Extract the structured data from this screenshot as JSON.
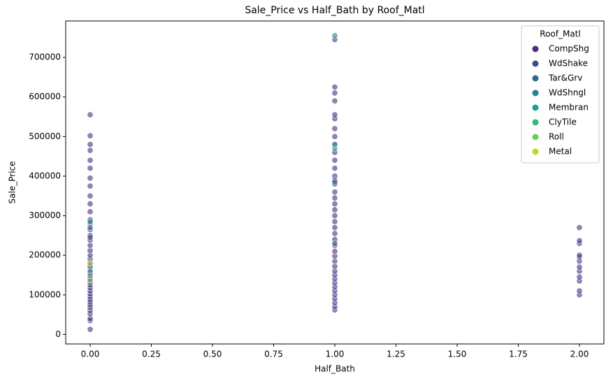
{
  "chart_data": {
    "type": "scatter",
    "title": "Sale_Price vs Half_Bath by Roof_Matl",
    "x_label": "Half_Bath",
    "y_label": "Sale_Price",
    "legend_title": "Roof_Matl",
    "legend_position": "upper right",
    "xlim": [
      -0.1,
      2.1
    ],
    "ylim": [
      -24000,
      792000
    ],
    "xticks": [
      {
        "value": 0,
        "label": "0.00"
      },
      {
        "value": 0.25,
        "label": "0.25"
      },
      {
        "value": 0.5,
        "label": "0.50"
      },
      {
        "value": 0.75,
        "label": "0.75"
      },
      {
        "value": 1,
        "label": "1.00"
      },
      {
        "value": 1.25,
        "label": "1.25"
      },
      {
        "value": 1.5,
        "label": "1.50"
      },
      {
        "value": 1.75,
        "label": "1.75"
      },
      {
        "value": 2,
        "label": "2.00"
      }
    ],
    "yticks": [
      0,
      100000,
      200000,
      300000,
      400000,
      500000,
      600000,
      700000
    ],
    "series": [
      {
        "name": "CompShg",
        "color": "#46307e",
        "x": [
          0,
          0,
          0,
          0,
          0,
          0,
          0,
          0,
          0,
          0,
          0,
          0,
          0,
          0,
          0,
          0,
          0,
          0,
          0,
          0,
          0,
          0,
          0,
          0,
          0,
          0,
          0,
          0,
          0,
          0,
          0,
          0,
          0,
          0,
          0,
          0,
          0,
          0,
          0,
          0,
          1,
          1,
          1,
          1,
          1,
          1,
          1,
          1,
          1,
          1,
          1,
          1,
          1,
          1,
          1,
          1,
          1,
          1,
          1,
          1,
          1,
          1,
          1,
          1,
          1,
          1,
          1,
          1,
          1,
          1,
          1,
          1,
          1,
          1,
          1,
          1,
          1,
          1,
          1,
          2,
          2,
          2,
          2,
          2,
          2,
          2,
          2,
          2,
          2,
          2,
          2
        ],
        "values": [
          12789,
          35000,
          40000,
          52000,
          60000,
          68000,
          75000,
          82000,
          88000,
          95000,
          102000,
          110000,
          118000,
          125000,
          132000,
          140000,
          148000,
          155000,
          163000,
          172000,
          180000,
          190000,
          200000,
          212000,
          225000,
          238000,
          250000,
          265000,
          290000,
          310000,
          330000,
          350000,
          375000,
          395000,
          420000,
          440000,
          465000,
          480000,
          502000,
          555000,
          62000,
          70000,
          80000,
          90000,
          100000,
          110000,
          120000,
          130000,
          140000,
          150000,
          160000,
          172000,
          185000,
          198000,
          210000,
          225000,
          240000,
          255000,
          270000,
          285000,
          300000,
          315000,
          330000,
          345000,
          360000,
          380000,
          400000,
          420000,
          440000,
          460000,
          480000,
          500000,
          520000,
          545000,
          555000,
          590000,
          610000,
          625000,
          745000,
          100000,
          110000,
          135000,
          145000,
          160000,
          170000,
          185000,
          195000,
          200000,
          230000,
          237000,
          270000
        ]
      },
      {
        "name": "WdShake",
        "color": "#3e4a89",
        "x": [
          0,
          0,
          1
        ],
        "values": [
          280000,
          245000,
          390000
        ]
      },
      {
        "name": "Tar&Grv",
        "color": "#31688e",
        "x": [
          0,
          1,
          1
        ],
        "values": [
          270000,
          385000,
          230000
        ]
      },
      {
        "name": "WdShngl",
        "color": "#26828e",
        "x": [
          0,
          1,
          1
        ],
        "values": [
          285000,
          755000,
          470000
        ]
      },
      {
        "name": "Membran",
        "color": "#1f9e89",
        "x": [
          1
        ],
        "values": [
          480000
        ]
      },
      {
        "name": "ClyTile",
        "color": "#35b779",
        "x": [
          0
        ],
        "values": [
          160000
        ]
      },
      {
        "name": "Roll",
        "color": "#6ece58",
        "x": [
          0
        ],
        "values": [
          137000
        ]
      },
      {
        "name": "Metal",
        "color": "#b5de2b",
        "x": [
          0
        ],
        "values": [
          180000
        ]
      }
    ]
  }
}
